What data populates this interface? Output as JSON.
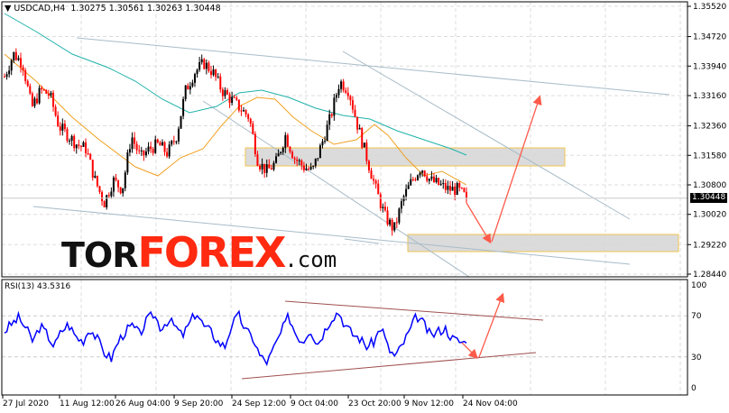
{
  "header": {
    "symbol": "USDCAD,H4",
    "open": "1.30275",
    "high": "1.30561",
    "low": "1.30263",
    "close": "1.30448"
  },
  "rsi_panel": {
    "label": "RSI(13) 43.5316",
    "levels": [
      "100",
      "70",
      "30",
      "0"
    ]
  },
  "logo": {
    "part1": "TOR",
    "part2": "FOREX",
    "part3": ".com"
  },
  "colors": {
    "bull": "#000000",
    "bear": "#ff0000",
    "ma_slow": "#20b2aa",
    "ma_fast": "#f0a020",
    "rsi": "#0000ff",
    "arrow": "#ff5a4a",
    "zone": "#d8d8d8",
    "zone_border": "#f0c040"
  },
  "chart_data": {
    "type": "candlestick",
    "symbol": "USDCAD",
    "timeframe": "H4",
    "ylim": [
      1.2844,
      1.3552
    ],
    "y_ticks": [
      "1.35520",
      "1.34720",
      "1.33940",
      "1.33160",
      "1.32360",
      "1.31580",
      "1.30800",
      "1.30020",
      "1.29220",
      "1.28440"
    ],
    "current_price": "1.30448",
    "x_ticks": [
      "27 Jul 2020",
      "11 Aug 12:00",
      "26 Aug 04:00",
      "9 Sep 20:00",
      "24 Sep 12:00",
      "9 Oct 04:00",
      "23 Oct 20:00",
      "9 Nov 12:00",
      "24 Nov 04:00"
    ],
    "close_path": [
      1.3366,
      1.3426,
      1.3402,
      1.3283,
      1.333,
      1.3318,
      1.3235,
      1.3211,
      1.3187,
      1.3175,
      1.3092,
      1.3032,
      1.3092,
      1.3068,
      1.3211,
      1.3151,
      1.3175,
      1.3187,
      1.3163,
      1.3211,
      1.333,
      1.3378,
      1.3402,
      1.3378,
      1.333,
      1.3306,
      1.3283,
      1.3259,
      1.314,
      1.3116,
      1.314,
      1.3211,
      1.3151,
      1.3128,
      1.3116,
      1.3187,
      1.3259,
      1.3354,
      1.333,
      1.3235,
      1.3151,
      1.3068,
      1.2997,
      1.2961,
      1.3044,
      1.3092,
      1.3128,
      1.3092,
      1.308,
      1.3068,
      1.3068,
      1.3045
    ],
    "rsi": {
      "period": 13,
      "last": 43.5316,
      "ylim": [
        0,
        100
      ],
      "levels": [
        70,
        30
      ],
      "values": [
        55,
        62,
        68,
        58,
        45,
        60,
        52,
        40,
        55,
        62,
        50,
        45,
        58,
        48,
        35,
        28,
        45,
        55,
        60,
        52,
        65,
        72,
        58,
        66,
        60,
        50,
        62,
        74,
        60,
        55,
        45,
        40,
        62,
        70,
        55,
        48,
        30,
        25,
        40,
        55,
        70,
        52,
        45,
        58,
        42,
        55,
        68,
        74,
        60,
        52,
        48,
        40,
        45,
        60,
        38,
        30,
        42,
        55,
        70,
        62,
        50,
        55,
        58,
        48,
        45,
        43.5
      ]
    }
  }
}
